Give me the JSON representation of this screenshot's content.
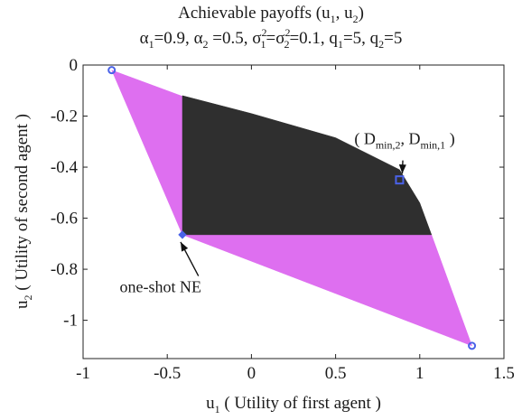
{
  "chart_data": {
    "type": "area",
    "title": {
      "line1": {
        "main": "Achievable payoffs (u",
        "s1": "1",
        "mid": ", u",
        "s2": "2",
        "end": ")"
      },
      "line2": {
        "alpha1": "α",
        "alpha1_sub": "1",
        "alpha1_val": "=0.9, ",
        "alpha2": "α",
        "alpha2_sub": "2",
        "alpha2_val": " =0.5, ",
        "sigma1": "σ",
        "sigma1_sup": "2",
        "sigma1_sub": "1",
        "eq": "=σ",
        "sigma2_sup": "2",
        "sigma2_sub": "2",
        "rest1": "=0.1, q",
        "q1_sub": "1",
        "q1_val": "=5, q",
        "q2_sub": "2",
        "q2_val": "=5"
      }
    },
    "xlabel": {
      "main": "u",
      "sub": "1",
      "rest": " ( Utility of first agent )"
    },
    "ylabel": {
      "main": "u",
      "sub": "2",
      "rest": " ( Utility of second agent )"
    },
    "xlim": [
      -1,
      1.5
    ],
    "ylim": [
      -1.15,
      0
    ],
    "xticks": [
      -1,
      -0.5,
      0,
      0.5,
      1,
      1.5
    ],
    "yticks": [
      0,
      -0.2,
      -0.4,
      -0.6,
      -0.8,
      -1
    ],
    "xtick_labels": [
      "-1",
      "-0.5",
      "0",
      "0.5",
      "1",
      "1.5"
    ],
    "ytick_labels": [
      "0",
      "-0.2",
      "-0.4",
      "-0.6",
      "-0.8",
      "-1"
    ],
    "colors": {
      "achievable": "#de6ff0",
      "dominating": "#2f2f2f",
      "marker": "#4a62e8"
    },
    "regions": [
      {
        "name": "achievable-region",
        "color": "#de6ff0",
        "points": [
          [
            -0.83,
            -0.02
          ],
          [
            -0.42,
            -0.12
          ],
          [
            0.85,
            -0.42
          ],
          [
            1.07,
            -0.665
          ],
          [
            1.31,
            -1.1
          ],
          [
            -0.41,
            -0.665
          ],
          [
            -0.83,
            -0.02
          ]
        ]
      },
      {
        "name": "dominating-region",
        "color": "#2f2f2f",
        "points": [
          [
            -0.41,
            -0.12
          ],
          [
            0.0,
            -0.19
          ],
          [
            0.5,
            -0.285
          ],
          [
            0.88,
            -0.41
          ],
          [
            1.0,
            -0.54
          ],
          [
            1.07,
            -0.665
          ],
          [
            -0.41,
            -0.665
          ],
          [
            -0.41,
            -0.12
          ]
        ]
      }
    ],
    "points": [
      {
        "name": "corner-point-left",
        "x": -0.83,
        "y": -0.02,
        "marker": "circle"
      },
      {
        "name": "corner-point-right",
        "x": 1.31,
        "y": -1.1,
        "marker": "circle"
      },
      {
        "name": "ne-point",
        "x": -0.41,
        "y": -0.665,
        "marker": "diamond"
      },
      {
        "name": "dmin-point",
        "x": 0.88,
        "y": -0.45,
        "marker": "square"
      }
    ],
    "annotations": [
      {
        "name": "dmin-annotation",
        "text": {
          "open": "( D",
          "s1": "min,2",
          "mid": ", D",
          "s2": "min,1",
          "close": " )"
        },
        "x": 0.88,
        "y": -0.45,
        "text_x": 0.91,
        "text_y": -0.31
      },
      {
        "name": "ne-annotation",
        "text": "one-shot NE",
        "x": -0.41,
        "y": -0.665,
        "text_x": -0.54,
        "text_y": -0.89
      }
    ]
  }
}
